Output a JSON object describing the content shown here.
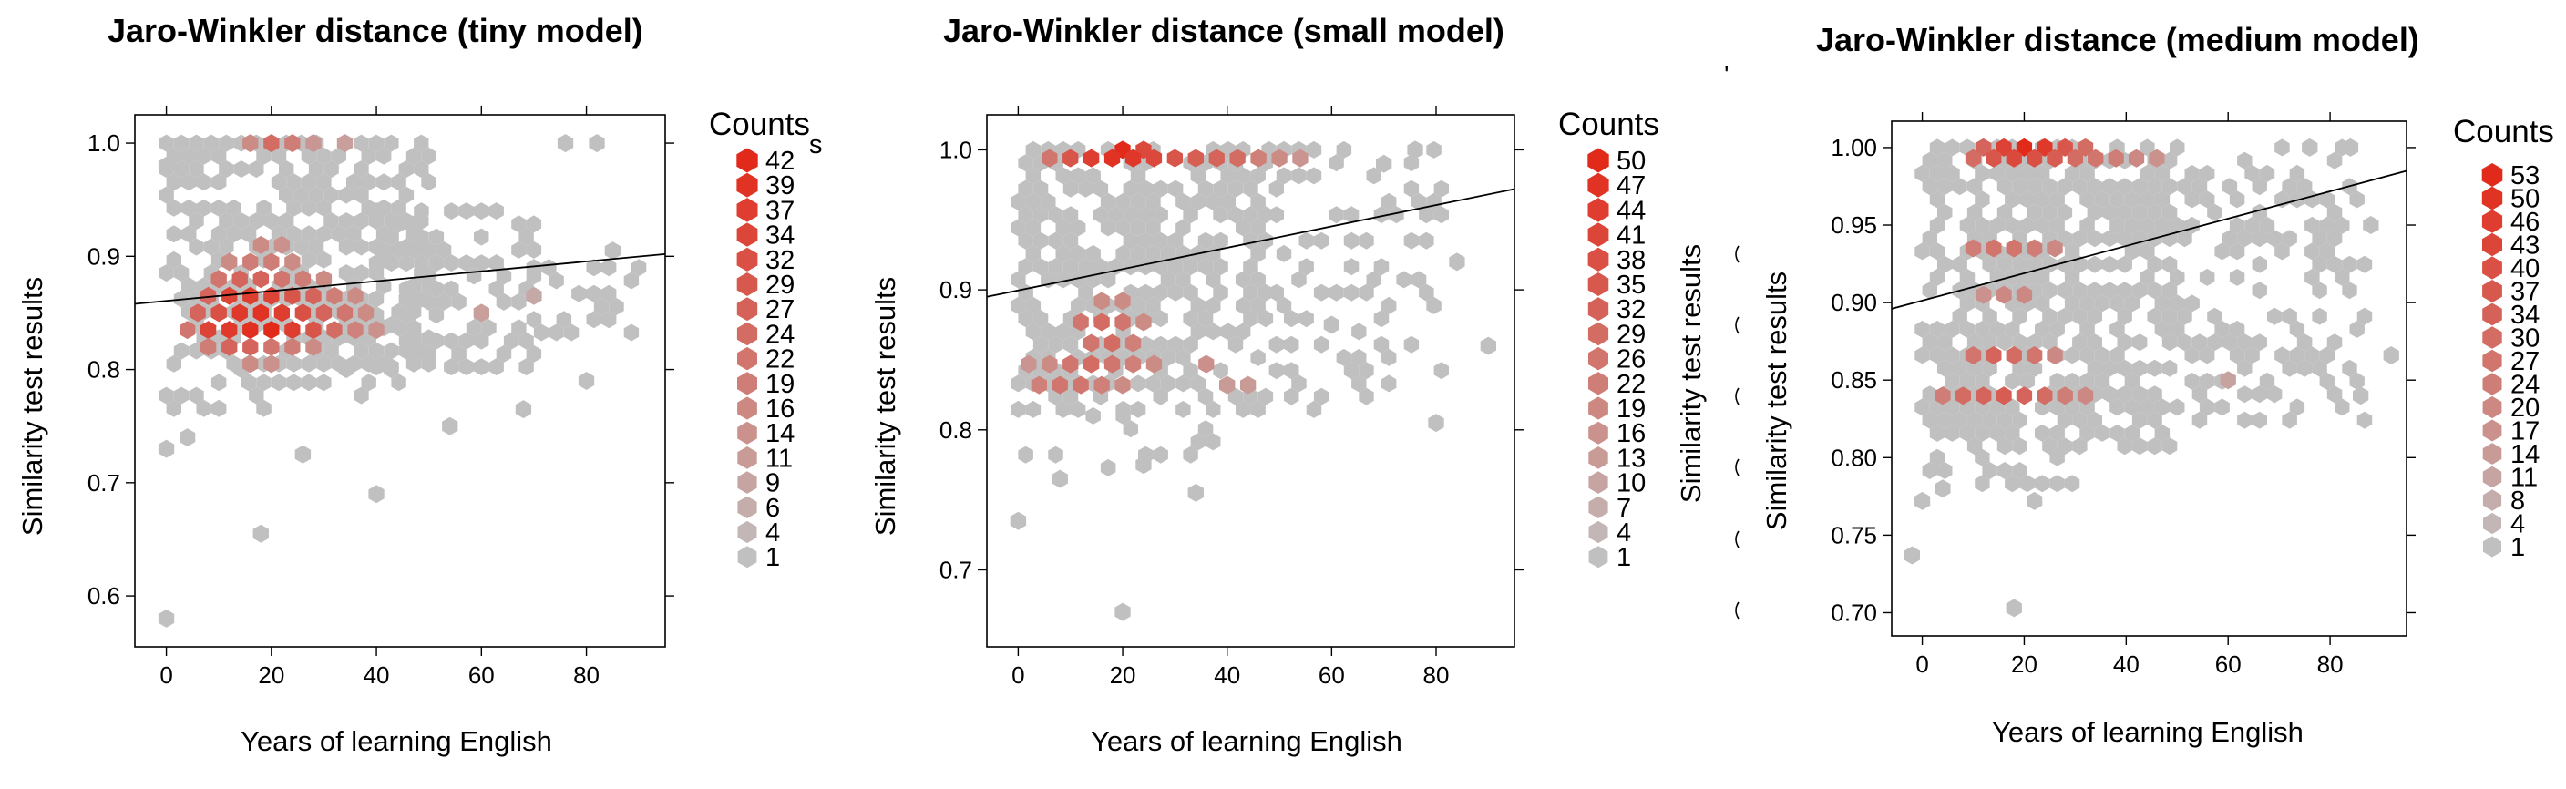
{
  "chart_data": [
    {
      "type": "heatmap",
      "title": "Jaro-Winkler distance (tiny model)",
      "xlabel": "Years of learning English",
      "ylabel": "Similarity test results",
      "xlim": [
        -6,
        95
      ],
      "ylim": [
        0.555,
        1.025
      ],
      "xticks": [
        0,
        20,
        40,
        60,
        80
      ],
      "xtick_labels": [
        "0",
        "20",
        "40",
        "60",
        "80"
      ],
      "yticks": [
        0.6,
        0.7,
        0.8,
        0.9,
        1.0
      ],
      "ytick_labels": [
        "0.6",
        "0.7",
        "0.8",
        "0.9",
        "1.0"
      ],
      "legend_title": "Counts",
      "legend_labels": [
        "42",
        "39",
        "37",
        "34",
        "32",
        "29",
        "27",
        "24",
        "22",
        "19",
        "16",
        "14",
        "11",
        "9",
        "6",
        "4",
        "1"
      ],
      "regression": {
        "x0": -6,
        "y0": 0.858,
        "x1": 95,
        "y1": 0.902
      },
      "cells": [
        {
          "x": 20,
          "y": 1.0,
          "count": 14
        },
        {
          "x": 24,
          "y": 1.0,
          "count": 9
        },
        {
          "x": 16,
          "y": 1.0,
          "count": 6
        },
        {
          "x": 28,
          "y": 1.0,
          "count": 4
        },
        {
          "x": 34,
          "y": 1.0,
          "count": 3
        },
        {
          "x": 12,
          "y": 0.835,
          "count": 34
        },
        {
          "x": 16,
          "y": 0.835,
          "count": 39
        },
        {
          "x": 20,
          "y": 0.835,
          "count": 42
        },
        {
          "x": 24,
          "y": 0.835,
          "count": 32
        },
        {
          "x": 8,
          "y": 0.835,
          "count": 29
        },
        {
          "x": 28,
          "y": 0.835,
          "count": 22
        },
        {
          "x": 32,
          "y": 0.835,
          "count": 14
        },
        {
          "x": 4,
          "y": 0.835,
          "count": 11
        },
        {
          "x": 36,
          "y": 0.835,
          "count": 8
        },
        {
          "x": 40,
          "y": 0.835,
          "count": 5
        },
        {
          "x": 14,
          "y": 0.85,
          "count": 34
        },
        {
          "x": 18,
          "y": 0.85,
          "count": 37
        },
        {
          "x": 22,
          "y": 0.85,
          "count": 32
        },
        {
          "x": 10,
          "y": 0.85,
          "count": 24
        },
        {
          "x": 26,
          "y": 0.85,
          "count": 24
        },
        {
          "x": 30,
          "y": 0.85,
          "count": 16
        },
        {
          "x": 6,
          "y": 0.85,
          "count": 16
        },
        {
          "x": 34,
          "y": 0.85,
          "count": 11
        },
        {
          "x": 38,
          "y": 0.85,
          "count": 6
        },
        {
          "x": 12,
          "y": 0.865,
          "count": 29
        },
        {
          "x": 16,
          "y": 0.865,
          "count": 32
        },
        {
          "x": 20,
          "y": 0.865,
          "count": 29
        },
        {
          "x": 24,
          "y": 0.865,
          "count": 22
        },
        {
          "x": 8,
          "y": 0.865,
          "count": 16
        },
        {
          "x": 28,
          "y": 0.865,
          "count": 16
        },
        {
          "x": 32,
          "y": 0.865,
          "count": 9
        },
        {
          "x": 36,
          "y": 0.865,
          "count": 6
        },
        {
          "x": 14,
          "y": 0.88,
          "count": 16
        },
        {
          "x": 18,
          "y": 0.88,
          "count": 16
        },
        {
          "x": 22,
          "y": 0.88,
          "count": 11
        },
        {
          "x": 10,
          "y": 0.88,
          "count": 11
        },
        {
          "x": 26,
          "y": 0.88,
          "count": 9
        },
        {
          "x": 30,
          "y": 0.88,
          "count": 6
        },
        {
          "x": 16,
          "y": 0.895,
          "count": 9
        },
        {
          "x": 20,
          "y": 0.895,
          "count": 9
        },
        {
          "x": 12,
          "y": 0.895,
          "count": 6
        },
        {
          "x": 24,
          "y": 0.895,
          "count": 6
        },
        {
          "x": 18,
          "y": 0.91,
          "count": 6
        },
        {
          "x": 22,
          "y": 0.91,
          "count": 5
        },
        {
          "x": 12,
          "y": 0.82,
          "count": 16
        },
        {
          "x": 16,
          "y": 0.82,
          "count": 16
        },
        {
          "x": 20,
          "y": 0.82,
          "count": 11
        },
        {
          "x": 8,
          "y": 0.82,
          "count": 9
        },
        {
          "x": 24,
          "y": 0.82,
          "count": 9
        },
        {
          "x": 28,
          "y": 0.82,
          "count": 6
        },
        {
          "x": 16,
          "y": 0.805,
          "count": 6
        },
        {
          "x": 20,
          "y": 0.805,
          "count": 5
        },
        {
          "x": 60,
          "y": 0.85,
          "count": 3
        },
        {
          "x": 70,
          "y": 0.865,
          "count": 2
        },
        {
          "x": 85,
          "y": 0.905,
          "count": 1
        },
        {
          "x": 80,
          "y": 0.79,
          "count": 1
        },
        {
          "x": 54,
          "y": 0.75,
          "count": 1
        },
        {
          "x": 40,
          "y": 0.69,
          "count": 1
        },
        {
          "x": 18,
          "y": 0.655,
          "count": 1
        },
        {
          "x": 0,
          "y": 0.58,
          "count": 1
        },
        {
          "x": 0,
          "y": 0.73,
          "count": 1
        },
        {
          "x": 4,
          "y": 0.74,
          "count": 1
        },
        {
          "x": 26,
          "y": 0.725,
          "count": 1
        },
        {
          "x": 68,
          "y": 0.765,
          "count": 1
        },
        {
          "x": 0,
          "y": 0.98,
          "count": 1
        },
        {
          "x": 76,
          "y": 1.0,
          "count": 1
        },
        {
          "x": 82,
          "y": 1.0,
          "count": 1
        }
      ]
    },
    {
      "type": "heatmap",
      "title": "Jaro-Winkler distance (small model)",
      "xlabel": "Years of learning English",
      "ylabel": "Similarity test results",
      "xlim": [
        -6,
        95
      ],
      "ylim": [
        0.645,
        1.025
      ],
      "xticks": [
        0,
        20,
        40,
        60,
        80
      ],
      "xtick_labels": [
        "0",
        "20",
        "40",
        "60",
        "80"
      ],
      "yticks": [
        0.7,
        0.8,
        0.9,
        1.0
      ],
      "ytick_labels": [
        "0.7",
        "0.8",
        "0.9",
        "1.0"
      ],
      "legend_title": "Counts",
      "legend_labels": [
        "50",
        "47",
        "44",
        "41",
        "38",
        "35",
        "32",
        "29",
        "26",
        "22",
        "19",
        "16",
        "13",
        "10",
        "7",
        "4",
        "1"
      ],
      "regression": {
        "x0": -6,
        "y0": 0.895,
        "x1": 95,
        "y1": 0.972
      },
      "cells": [
        {
          "x": 20,
          "y": 1.0,
          "count": 50
        },
        {
          "x": 24,
          "y": 1.0,
          "count": 32
        },
        {
          "x": 10,
          "y": 0.994,
          "count": 26
        },
        {
          "x": 14,
          "y": 0.994,
          "count": 38
        },
        {
          "x": 18,
          "y": 0.994,
          "count": 44
        },
        {
          "x": 22,
          "y": 0.994,
          "count": 41
        },
        {
          "x": 26,
          "y": 0.994,
          "count": 32
        },
        {
          "x": 30,
          "y": 0.994,
          "count": 26
        },
        {
          "x": 34,
          "y": 0.994,
          "count": 22
        },
        {
          "x": 38,
          "y": 0.994,
          "count": 19
        },
        {
          "x": 42,
          "y": 0.994,
          "count": 16
        },
        {
          "x": 6,
          "y": 0.994,
          "count": 13
        },
        {
          "x": 46,
          "y": 0.994,
          "count": 10
        },
        {
          "x": 50,
          "y": 0.994,
          "count": 7
        },
        {
          "x": 54,
          "y": 0.994,
          "count": 5
        },
        {
          "x": 16,
          "y": 0.877,
          "count": 16
        },
        {
          "x": 20,
          "y": 0.877,
          "count": 13
        },
        {
          "x": 12,
          "y": 0.877,
          "count": 13
        },
        {
          "x": 18,
          "y": 0.862,
          "count": 16
        },
        {
          "x": 14,
          "y": 0.862,
          "count": 13
        },
        {
          "x": 22,
          "y": 0.862,
          "count": 10
        },
        {
          "x": 10,
          "y": 0.847,
          "count": 13
        },
        {
          "x": 14,
          "y": 0.847,
          "count": 16
        },
        {
          "x": 18,
          "y": 0.847,
          "count": 13
        },
        {
          "x": 22,
          "y": 0.847,
          "count": 10
        },
        {
          "x": 26,
          "y": 0.847,
          "count": 7
        },
        {
          "x": 4,
          "y": 0.832,
          "count": 10
        },
        {
          "x": 8,
          "y": 0.832,
          "count": 13
        },
        {
          "x": 12,
          "y": 0.832,
          "count": 13
        },
        {
          "x": 16,
          "y": 0.832,
          "count": 10
        },
        {
          "x": 20,
          "y": 0.832,
          "count": 7
        },
        {
          "x": 16,
          "y": 0.892,
          "count": 7
        },
        {
          "x": 20,
          "y": 0.892,
          "count": 7
        },
        {
          "x": 24,
          "y": 0.877,
          "count": 7
        },
        {
          "x": 6,
          "y": 0.847,
          "count": 7
        },
        {
          "x": 2,
          "y": 0.847,
          "count": 5
        },
        {
          "x": 36,
          "y": 0.847,
          "count": 6
        },
        {
          "x": 40,
          "y": 0.832,
          "count": 4
        },
        {
          "x": 44,
          "y": 0.832,
          "count": 4
        },
        {
          "x": 20,
          "y": 0.67,
          "count": 1
        },
        {
          "x": 0,
          "y": 0.735,
          "count": 1
        },
        {
          "x": 34,
          "y": 0.755,
          "count": 1
        },
        {
          "x": 8,
          "y": 0.765,
          "count": 1
        },
        {
          "x": 24,
          "y": 0.775,
          "count": 1
        },
        {
          "x": 80,
          "y": 0.805,
          "count": 1
        },
        {
          "x": 84,
          "y": 0.92,
          "count": 1
        },
        {
          "x": 90,
          "y": 0.86,
          "count": 1
        },
        {
          "x": 70,
          "y": 0.99,
          "count": 1
        },
        {
          "x": 76,
          "y": 1.0,
          "count": 1
        },
        {
          "x": 60,
          "y": 0.875,
          "count": 1
        }
      ]
    },
    {
      "type": "heatmap",
      "title": "Jaro-Winkler distance (medium model)",
      "xlabel": "Years of learning English",
      "ylabel": "Similarity test results",
      "xlim": [
        -6,
        95
      ],
      "ylim": [
        0.685,
        1.017
      ],
      "xticks": [
        0,
        20,
        40,
        60,
        80
      ],
      "xtick_labels": [
        "0",
        "20",
        "40",
        "60",
        "80"
      ],
      "yticks": [
        0.7,
        0.75,
        0.8,
        0.85,
        0.9,
        0.95,
        1.0
      ],
      "ytick_labels": [
        "0.70",
        "0.75",
        "0.80",
        "0.85",
        "0.90",
        "0.95",
        "1.00"
      ],
      "legend_title": "Counts",
      "legend_labels": [
        "53",
        "50",
        "46",
        "43",
        "40",
        "37",
        "34",
        "30",
        "27",
        "24",
        "20",
        "17",
        "14",
        "11",
        "8",
        "4",
        "1"
      ],
      "regression": {
        "x0": -6,
        "y0": 0.896,
        "x1": 95,
        "y1": 0.985
      },
      "cells": [
        {
          "x": 20,
          "y": 1.0,
          "count": 53
        },
        {
          "x": 16,
          "y": 1.0,
          "count": 37
        },
        {
          "x": 24,
          "y": 1.0,
          "count": 43
        },
        {
          "x": 28,
          "y": 1.0,
          "count": 27
        },
        {
          "x": 12,
          "y": 1.0,
          "count": 20
        },
        {
          "x": 32,
          "y": 1.0,
          "count": 17
        },
        {
          "x": 10,
          "y": 0.993,
          "count": 17
        },
        {
          "x": 14,
          "y": 0.993,
          "count": 27
        },
        {
          "x": 18,
          "y": 0.993,
          "count": 34
        },
        {
          "x": 22,
          "y": 0.993,
          "count": 30
        },
        {
          "x": 26,
          "y": 0.993,
          "count": 24
        },
        {
          "x": 30,
          "y": 0.993,
          "count": 17
        },
        {
          "x": 34,
          "y": 0.993,
          "count": 14
        },
        {
          "x": 38,
          "y": 0.993,
          "count": 11
        },
        {
          "x": 42,
          "y": 0.993,
          "count": 8
        },
        {
          "x": 46,
          "y": 0.993,
          "count": 6
        },
        {
          "x": 4,
          "y": 0.84,
          "count": 11
        },
        {
          "x": 8,
          "y": 0.84,
          "count": 17
        },
        {
          "x": 12,
          "y": 0.84,
          "count": 20
        },
        {
          "x": 16,
          "y": 0.84,
          "count": 24
        },
        {
          "x": 20,
          "y": 0.84,
          "count": 20
        },
        {
          "x": 24,
          "y": 0.84,
          "count": 17
        },
        {
          "x": 28,
          "y": 0.84,
          "count": 11
        },
        {
          "x": 32,
          "y": 0.84,
          "count": 8
        },
        {
          "x": 10,
          "y": 0.866,
          "count": 14
        },
        {
          "x": 14,
          "y": 0.866,
          "count": 20
        },
        {
          "x": 18,
          "y": 0.866,
          "count": 17
        },
        {
          "x": 22,
          "y": 0.866,
          "count": 14
        },
        {
          "x": 26,
          "y": 0.866,
          "count": 8
        },
        {
          "x": 10,
          "y": 0.935,
          "count": 11
        },
        {
          "x": 14,
          "y": 0.935,
          "count": 14
        },
        {
          "x": 18,
          "y": 0.935,
          "count": 14
        },
        {
          "x": 22,
          "y": 0.935,
          "count": 11
        },
        {
          "x": 26,
          "y": 0.935,
          "count": 8
        },
        {
          "x": 16,
          "y": 0.905,
          "count": 8
        },
        {
          "x": 20,
          "y": 0.905,
          "count": 8
        },
        {
          "x": 12,
          "y": 0.905,
          "count": 6
        },
        {
          "x": 60,
          "y": 0.85,
          "count": 3
        },
        {
          "x": 18,
          "y": 0.703,
          "count": 1
        },
        {
          "x": -2,
          "y": 0.737,
          "count": 1
        },
        {
          "x": 0,
          "y": 0.772,
          "count": 1
        },
        {
          "x": 4,
          "y": 0.78,
          "count": 1
        },
        {
          "x": 22,
          "y": 0.772,
          "count": 1
        },
        {
          "x": 86,
          "y": 0.84,
          "count": 1
        },
        {
          "x": 88,
          "y": 0.95,
          "count": 1
        },
        {
          "x": 92,
          "y": 0.866,
          "count": 1
        },
        {
          "x": 84,
          "y": 1.0,
          "count": 1
        },
        {
          "x": 76,
          "y": 1.0,
          "count": 1
        }
      ]
    }
  ]
}
